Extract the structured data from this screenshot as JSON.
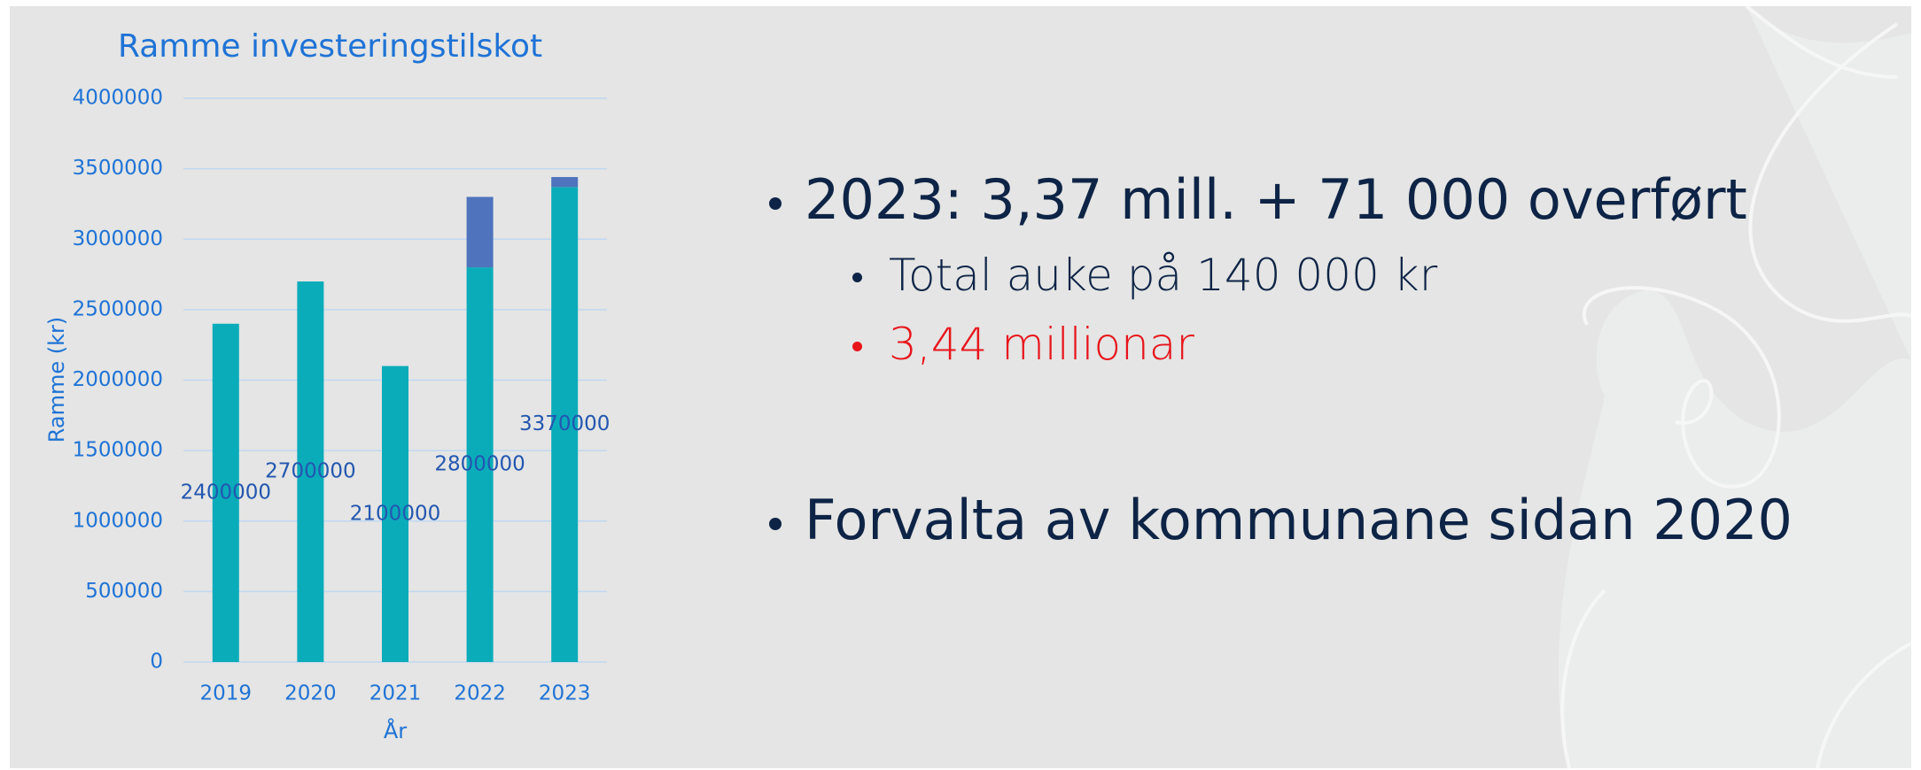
{
  "chart_data": {
    "type": "stacked_bar",
    "title": "Ramme investeringstilskot",
    "x_label": "År",
    "y_label": "Ramme (kr)",
    "categories": [
      "2019",
      "2020",
      "2021",
      "2022",
      "2023"
    ],
    "series": [
      {
        "color": "#0aacba",
        "values": [
          2400000,
          2700000,
          2100000,
          2800000,
          3370000
        ],
        "data_labels": true
      },
      {
        "color": "#4f73bd",
        "values": [
          null,
          null,
          null,
          500000,
          71000
        ]
      }
    ],
    "ylim": [
      0,
      4000000
    ],
    "yticks": [
      0,
      500000,
      1000000,
      1500000,
      2000000,
      2500000,
      3000000,
      3500000,
      4000000
    ],
    "grid": true
  },
  "bullets": [
    {
      "text": "2023: 3,37 mill. + 71 000 overført",
      "children": [
        {
          "text": "Total auke på 140 000 kr"
        },
        {
          "text": "3,44 millionar",
          "color": "#e8141b"
        }
      ]
    },
    {
      "text": "Forvalta av kommunane sidan 2020",
      "children": []
    }
  ]
}
